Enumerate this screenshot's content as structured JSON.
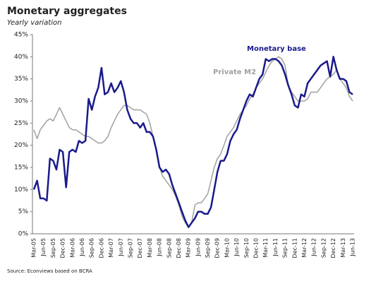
{
  "chart_data": {
    "type": "line",
    "title": "Monetary aggregates",
    "subtitle": "Yearly variation",
    "source": "Source: Econviews based on BCRA",
    "categories": [
      "Mar-05",
      null,
      null,
      "Jun-05",
      null,
      null,
      "Sep-05",
      null,
      null,
      "Dec-05",
      null,
      null,
      "Mar-06",
      null,
      null,
      "Jun-06",
      null,
      null,
      "Sep-06",
      null,
      null,
      "Dec-06",
      null,
      null,
      "Mar-07",
      null,
      null,
      "Jun-07",
      null,
      null,
      "Sep-07",
      null,
      null,
      "Dec-07",
      null,
      null,
      "Mar-08",
      null,
      null,
      "Jun-08",
      null,
      null,
      "Sep-08",
      null,
      null,
      "Dec-08",
      null,
      null,
      "Mar-09",
      null,
      null,
      "Jun-09",
      null,
      null,
      "Sep-09",
      null,
      null,
      "Dec-09",
      null,
      null,
      "Mar-10",
      null,
      null,
      "Jun-10",
      null,
      null,
      "Sep-10",
      null,
      null,
      "Dec-10",
      null,
      null,
      "Mar-11",
      null,
      null,
      "Jun-11",
      null,
      null,
      "Sep-11",
      null,
      null,
      "Dec-11",
      null,
      null,
      "Mar-12",
      null,
      null,
      "Jun-12",
      null,
      null,
      "Sep-12",
      null,
      null,
      "Dec-12",
      null,
      null,
      "Mar-13",
      null,
      null,
      "Jun-13"
    ],
    "series": [
      {
        "name": "Monetary base",
        "color": "#1a1a8c",
        "width": 2.5,
        "values": [
          10,
          12,
          8,
          8,
          7.5,
          17,
          16.5,
          14.5,
          19,
          18.5,
          10.5,
          18.5,
          19,
          18.5,
          21,
          20.5,
          21,
          30.5,
          28,
          31,
          33,
          37.5,
          31.5,
          32,
          34,
          32,
          33,
          34.5,
          32,
          28,
          26,
          25,
          25,
          24,
          25,
          23,
          23,
          22,
          19,
          15,
          14,
          14.5,
          13.5,
          11,
          9,
          7,
          5,
          3,
          1.5,
          2.5,
          3.5,
          5,
          5,
          4.5,
          4.5,
          6,
          10,
          14,
          16.5,
          16.5,
          18,
          21,
          22.5,
          23.5,
          26,
          28,
          30,
          31.5,
          31,
          33,
          35,
          36,
          39.5,
          39,
          39.5,
          39.5,
          39,
          38,
          36,
          33.5,
          31.5,
          29,
          28.5,
          31.5,
          31,
          34,
          35,
          36,
          37,
          38,
          38.5,
          39,
          35.5,
          40,
          37,
          35,
          35,
          34.5,
          32,
          31.5
        ]
      },
      {
        "name": "Private M2",
        "color": "#a0a0a0",
        "width": 1.5,
        "values": [
          23.5,
          21.5,
          23.5,
          24.5,
          25.5,
          26,
          25.5,
          27,
          28.5,
          27,
          25.5,
          24,
          23.5,
          23.5,
          23,
          22.5,
          22,
          22,
          21.5,
          21,
          20.5,
          20.5,
          21,
          22,
          24,
          25.5,
          27,
          28,
          29,
          29,
          28.5,
          28,
          28,
          28,
          27.5,
          27,
          25,
          22,
          19,
          15,
          13,
          12,
          11,
          10,
          8.5,
          6.5,
          4,
          2.5,
          1.5,
          2.5,
          6.5,
          7,
          7,
          8,
          9,
          12,
          15,
          17,
          18,
          20,
          22,
          23,
          24,
          25.5,
          27,
          28,
          29,
          30.5,
          31.5,
          33,
          34,
          35,
          36.5,
          38,
          39,
          39.5,
          40,
          39.5,
          38,
          33.5,
          32,
          31,
          30,
          30,
          30,
          30.5,
          32,
          32,
          32,
          33,
          34,
          35,
          35.5,
          36,
          37,
          35,
          34,
          33,
          31,
          30
        ]
      }
    ],
    "ylim": [
      0,
      45
    ],
    "yticks": [
      {
        "value": 0,
        "label": "0%"
      },
      {
        "value": 5,
        "label": "5%"
      },
      {
        "value": 10,
        "label": "10%"
      },
      {
        "value": 15,
        "label": "15%"
      },
      {
        "value": 20,
        "label": "20%"
      },
      {
        "value": 25,
        "label": "25%"
      },
      {
        "value": 30,
        "label": "30%"
      },
      {
        "value": 35,
        "label": "35%"
      },
      {
        "value": 40,
        "label": "40%"
      },
      {
        "value": 45,
        "label": "45%"
      }
    ],
    "grid": false
  }
}
